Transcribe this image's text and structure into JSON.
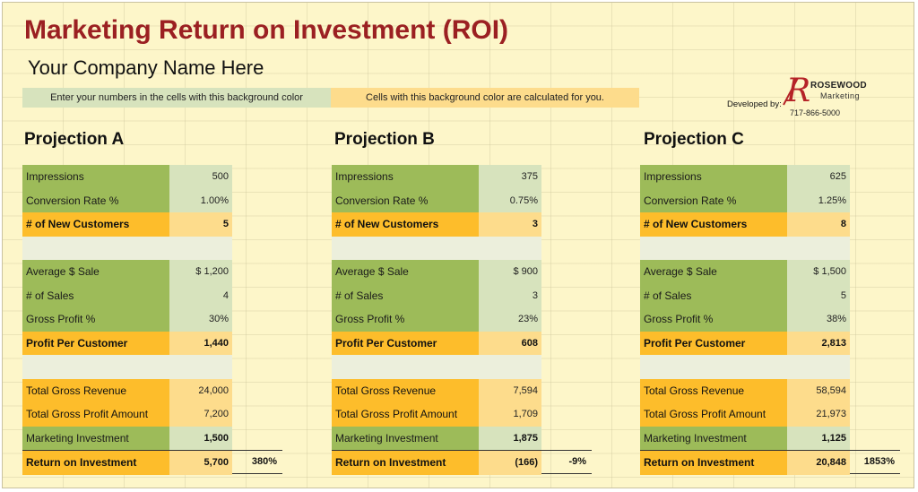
{
  "title": "Marketing Return on Investment (ROI)",
  "company": "Your Company Name Here",
  "legend": {
    "input": "Enter your numbers in the cells with this background color",
    "calc": "Cells with this background color are calculated for you."
  },
  "developer": {
    "label": "Developed by:",
    "logo_letter": "R",
    "name_top": "ROSEWOOD",
    "name_bottom": "Marketing",
    "phone": "717-866-5000"
  },
  "colors": {
    "title": "#9b2022",
    "input_label_bg": "#9dbb59",
    "input_value_bg": "#d7e3bd",
    "calc_label_bg": "#fdbd2b",
    "calc_value_bg": "#fddc8c",
    "sheet_bg": "#fdf6c9"
  },
  "projections": [
    {
      "heading": "Projection A",
      "impressions": {
        "label": "Impressions",
        "value": "500"
      },
      "conversion_rate": {
        "label": "Conversion Rate %",
        "value": "1.00%"
      },
      "new_customers": {
        "label": "# of New Customers",
        "value": "5"
      },
      "average_sale": {
        "label": "Average $ Sale",
        "value": "$ 1,200"
      },
      "num_sales": {
        "label": "# of Sales",
        "value": "4"
      },
      "gross_profit_pct": {
        "label": "Gross Profit %",
        "value": "30%"
      },
      "profit_per_customer": {
        "label": "Profit Per Customer",
        "value": "1,440"
      },
      "total_gross_revenue": {
        "label": "Total Gross Revenue",
        "value": "24,000"
      },
      "total_gross_profit": {
        "label": "Total Gross Profit Amount",
        "value": "7,200"
      },
      "marketing_investment": {
        "label": "Marketing Investment",
        "value": "1,500"
      },
      "roi": {
        "label": "Return on Investment",
        "value": "5,700",
        "percent": "380%"
      }
    },
    {
      "heading": "Projection B",
      "impressions": {
        "label": "Impressions",
        "value": "375"
      },
      "conversion_rate": {
        "label": "Conversion Rate %",
        "value": "0.75%"
      },
      "new_customers": {
        "label": "# of New Customers",
        "value": "3"
      },
      "average_sale": {
        "label": "Average $ Sale",
        "value": "$ 900"
      },
      "num_sales": {
        "label": "# of Sales",
        "value": "3"
      },
      "gross_profit_pct": {
        "label": "Gross Profit %",
        "value": "23%"
      },
      "profit_per_customer": {
        "label": "Profit Per Customer",
        "value": "608"
      },
      "total_gross_revenue": {
        "label": "Total Gross Revenue",
        "value": "7,594"
      },
      "total_gross_profit": {
        "label": "Total Gross Profit Amount",
        "value": "1,709"
      },
      "marketing_investment": {
        "label": "Marketing Investment",
        "value": "1,875"
      },
      "roi": {
        "label": "Return on Investment",
        "value": "(166)",
        "percent": "-9%"
      }
    },
    {
      "heading": "Projection C",
      "impressions": {
        "label": "Impressions",
        "value": "625"
      },
      "conversion_rate": {
        "label": "Conversion Rate %",
        "value": "1.25%"
      },
      "new_customers": {
        "label": "# of New Customers",
        "value": "8"
      },
      "average_sale": {
        "label": "Average $ Sale",
        "value": "$ 1,500"
      },
      "num_sales": {
        "label": "# of Sales",
        "value": "5"
      },
      "gross_profit_pct": {
        "label": "Gross Profit %",
        "value": "38%"
      },
      "profit_per_customer": {
        "label": "Profit Per Customer",
        "value": "2,813"
      },
      "total_gross_revenue": {
        "label": "Total Gross Revenue",
        "value": "58,594"
      },
      "total_gross_profit": {
        "label": "Total Gross Profit Amount",
        "value": "21,973"
      },
      "marketing_investment": {
        "label": "Marketing Investment",
        "value": "1,125"
      },
      "roi": {
        "label": "Return on Investment",
        "value": "20,848",
        "percent": "1853%"
      }
    }
  ]
}
